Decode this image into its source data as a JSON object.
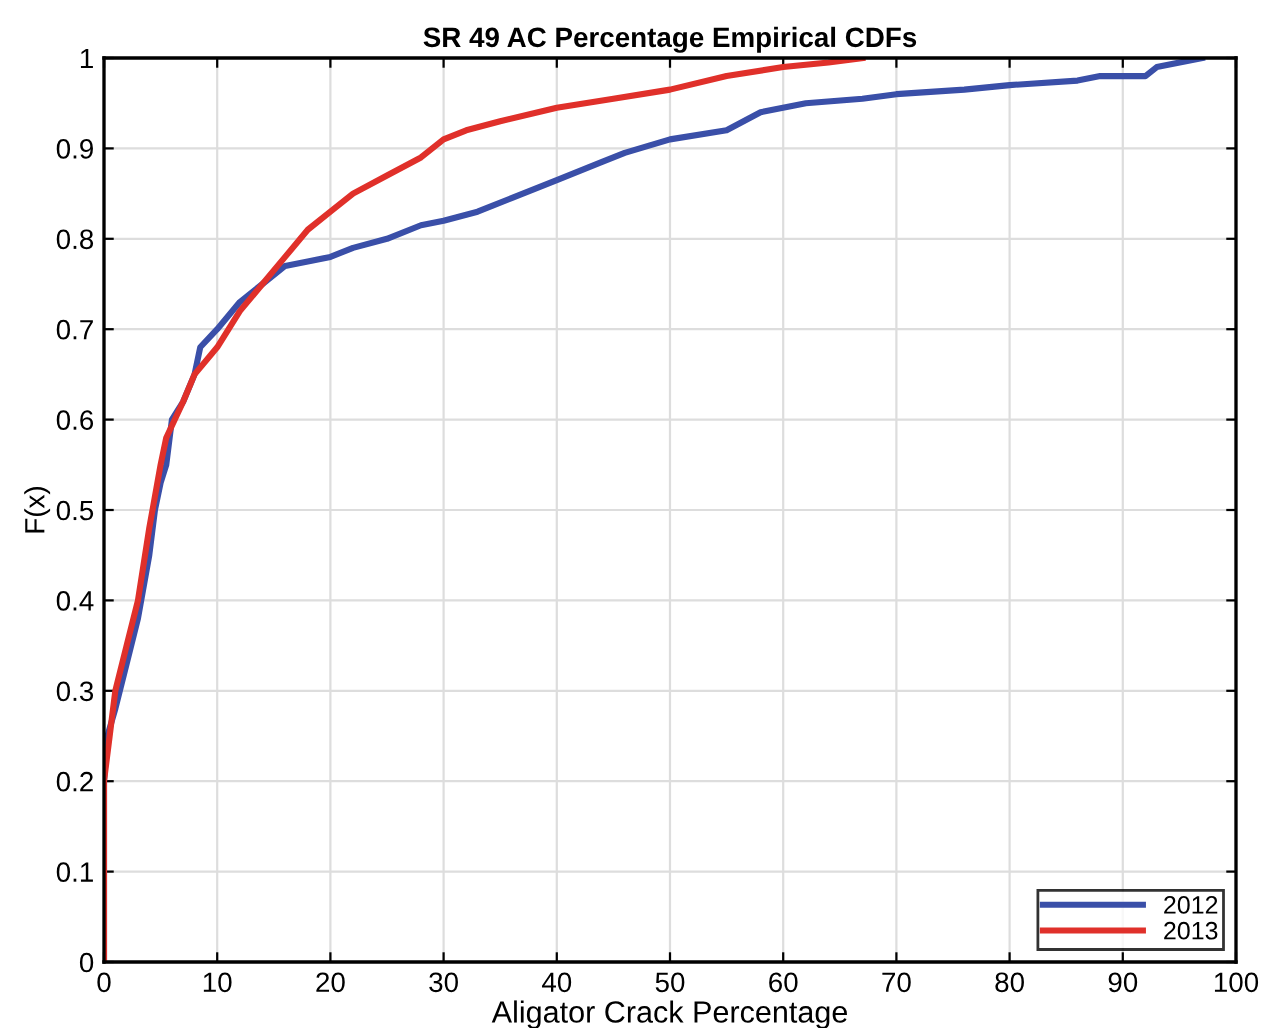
{
  "chart_data": {
    "type": "line",
    "title": "SR 49 AC Percentage Empirical CDFs",
    "xlabel": "Aligator Crack Percentage",
    "ylabel": "F(x)",
    "series": [
      {
        "name": "2012",
        "color": "#3a4fa8",
        "x": [
          0,
          0,
          0.3,
          1,
          2,
          3,
          4,
          4.5,
          5,
          5.5,
          6,
          7,
          8,
          8.5,
          10,
          12,
          14,
          16,
          18,
          20,
          22,
          25,
          28,
          30,
          33,
          36,
          40,
          44,
          46,
          50,
          55,
          58,
          62,
          67,
          70,
          76,
          80,
          86,
          88,
          92,
          93,
          97
        ],
        "values": [
          0,
          0.2,
          0.25,
          0.28,
          0.33,
          0.38,
          0.45,
          0.5,
          0.53,
          0.55,
          0.6,
          0.62,
          0.65,
          0.68,
          0.7,
          0.73,
          0.75,
          0.77,
          0.775,
          0.78,
          0.79,
          0.8,
          0.815,
          0.82,
          0.83,
          0.845,
          0.865,
          0.885,
          0.895,
          0.91,
          0.92,
          0.94,
          0.95,
          0.955,
          0.96,
          0.965,
          0.97,
          0.975,
          0.98,
          0.98,
          0.99,
          1.0
        ]
      },
      {
        "name": "2013",
        "color": "#e0302a",
        "x": [
          0,
          0,
          0.5,
          1,
          2,
          3,
          4,
          5,
          5.5,
          7,
          8,
          10,
          12,
          14,
          16,
          18,
          20,
          22,
          25,
          28,
          30,
          32,
          35,
          40,
          45,
          50,
          55,
          60,
          64,
          67
        ],
        "values": [
          0,
          0.2,
          0.25,
          0.3,
          0.35,
          0.4,
          0.48,
          0.55,
          0.58,
          0.62,
          0.65,
          0.68,
          0.72,
          0.75,
          0.78,
          0.81,
          0.83,
          0.85,
          0.87,
          0.89,
          0.91,
          0.92,
          0.93,
          0.945,
          0.955,
          0.965,
          0.98,
          0.99,
          0.995,
          1.0
        ]
      }
    ],
    "xlim": [
      0,
      100
    ],
    "xticks": [
      0,
      10,
      20,
      30,
      40,
      50,
      60,
      70,
      80,
      90,
      100
    ],
    "ylim": [
      0,
      1
    ],
    "yticks": [
      0,
      0.1,
      0.2,
      0.3,
      0.4,
      0.5,
      0.6,
      0.7,
      0.8,
      0.9,
      1
    ],
    "grid": true,
    "legend": "bottom right"
  }
}
